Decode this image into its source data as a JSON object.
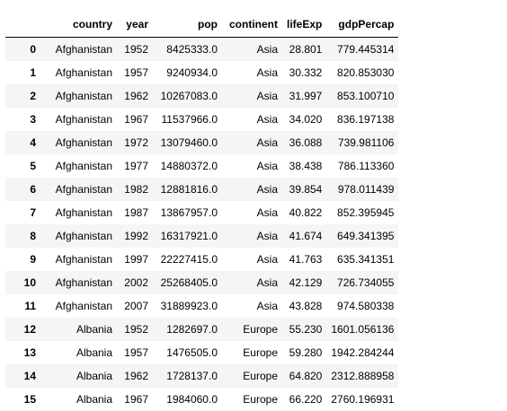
{
  "dataframe": {
    "columns": [
      "country",
      "year",
      "pop",
      "continent",
      "lifeExp",
      "gdpPercap"
    ],
    "rows": [
      {
        "index": "0",
        "country": "Afghanistan",
        "year": "1952",
        "pop": "8425333.0",
        "continent": "Asia",
        "lifeExp": "28.801",
        "gdpPercap": "779.445314"
      },
      {
        "index": "1",
        "country": "Afghanistan",
        "year": "1957",
        "pop": "9240934.0",
        "continent": "Asia",
        "lifeExp": "30.332",
        "gdpPercap": "820.853030"
      },
      {
        "index": "2",
        "country": "Afghanistan",
        "year": "1962",
        "pop": "10267083.0",
        "continent": "Asia",
        "lifeExp": "31.997",
        "gdpPercap": "853.100710"
      },
      {
        "index": "3",
        "country": "Afghanistan",
        "year": "1967",
        "pop": "11537966.0",
        "continent": "Asia",
        "lifeExp": "34.020",
        "gdpPercap": "836.197138"
      },
      {
        "index": "4",
        "country": "Afghanistan",
        "year": "1972",
        "pop": "13079460.0",
        "continent": "Asia",
        "lifeExp": "36.088",
        "gdpPercap": "739.981106"
      },
      {
        "index": "5",
        "country": "Afghanistan",
        "year": "1977",
        "pop": "14880372.0",
        "continent": "Asia",
        "lifeExp": "38.438",
        "gdpPercap": "786.113360"
      },
      {
        "index": "6",
        "country": "Afghanistan",
        "year": "1982",
        "pop": "12881816.0",
        "continent": "Asia",
        "lifeExp": "39.854",
        "gdpPercap": "978.011439"
      },
      {
        "index": "7",
        "country": "Afghanistan",
        "year": "1987",
        "pop": "13867957.0",
        "continent": "Asia",
        "lifeExp": "40.822",
        "gdpPercap": "852.395945"
      },
      {
        "index": "8",
        "country": "Afghanistan",
        "year": "1992",
        "pop": "16317921.0",
        "continent": "Asia",
        "lifeExp": "41.674",
        "gdpPercap": "649.341395"
      },
      {
        "index": "9",
        "country": "Afghanistan",
        "year": "1997",
        "pop": "22227415.0",
        "continent": "Asia",
        "lifeExp": "41.763",
        "gdpPercap": "635.341351"
      },
      {
        "index": "10",
        "country": "Afghanistan",
        "year": "2002",
        "pop": "25268405.0",
        "continent": "Asia",
        "lifeExp": "42.129",
        "gdpPercap": "726.734055"
      },
      {
        "index": "11",
        "country": "Afghanistan",
        "year": "2007",
        "pop": "31889923.0",
        "continent": "Asia",
        "lifeExp": "43.828",
        "gdpPercap": "974.580338"
      },
      {
        "index": "12",
        "country": "Albania",
        "year": "1952",
        "pop": "1282697.0",
        "continent": "Europe",
        "lifeExp": "55.230",
        "gdpPercap": "1601.056136"
      },
      {
        "index": "13",
        "country": "Albania",
        "year": "1957",
        "pop": "1476505.0",
        "continent": "Europe",
        "lifeExp": "59.280",
        "gdpPercap": "1942.284244"
      },
      {
        "index": "14",
        "country": "Albania",
        "year": "1962",
        "pop": "1728137.0",
        "continent": "Europe",
        "lifeExp": "64.820",
        "gdpPercap": "2312.888958"
      },
      {
        "index": "15",
        "country": "Albania",
        "year": "1967",
        "pop": "1984060.0",
        "continent": "Europe",
        "lifeExp": "66.220",
        "gdpPercap": "2760.196931"
      }
    ]
  }
}
